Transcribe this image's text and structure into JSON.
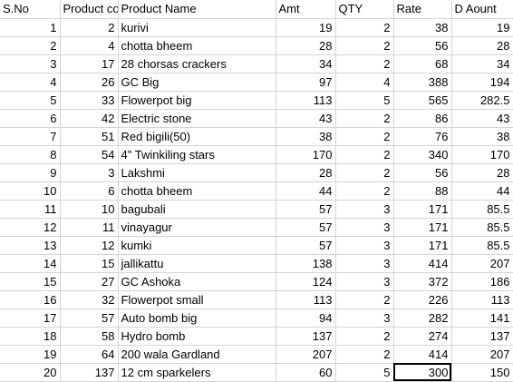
{
  "headers": [
    "S.No",
    "Product co",
    "Product Name",
    "Amt",
    "QTY",
    "Rate",
    "D Aount"
  ],
  "rows": [
    [
      "1",
      "2",
      "kurivi",
      "19",
      "2",
      "38",
      "19"
    ],
    [
      "2",
      "4",
      "chotta bheem",
      "28",
      "2",
      "56",
      "28"
    ],
    [
      "3",
      "17",
      "28 chorsas  crackers",
      "34",
      "2",
      "68",
      "34"
    ],
    [
      "4",
      "26",
      "GC Big",
      "97",
      "4",
      "388",
      "194"
    ],
    [
      "5",
      "33",
      "Flowerpot big",
      "113",
      "5",
      "565",
      "282.5"
    ],
    [
      "6",
      "42",
      "Electric stone",
      "43",
      "2",
      "86",
      "43"
    ],
    [
      "7",
      "51",
      "Red bigili(50)",
      "38",
      "2",
      "76",
      "38"
    ],
    [
      "8",
      "54",
      "4\" Twinkiling stars",
      "170",
      "2",
      "340",
      "170"
    ],
    [
      "9",
      "3",
      "Lakshmi",
      "28",
      "2",
      "56",
      "28"
    ],
    [
      "10",
      "6",
      "chotta bheem",
      "44",
      "2",
      "88",
      "44"
    ],
    [
      "11",
      "10",
      "bagubali",
      "57",
      "3",
      "171",
      "85.5"
    ],
    [
      "12",
      "11",
      "vinayagur",
      "57",
      "3",
      "171",
      "85.5"
    ],
    [
      "13",
      "12",
      "kumki",
      "57",
      "3",
      "171",
      "85.5"
    ],
    [
      "14",
      "15",
      "jallikattu",
      "138",
      "3",
      "414",
      "207"
    ],
    [
      "15",
      "27",
      "GC Ashoka",
      "124",
      "3",
      "372",
      "186"
    ],
    [
      "16",
      "32",
      "Flowerpot small",
      "113",
      "2",
      "226",
      "113"
    ],
    [
      "17",
      "57",
      "Auto bomb big",
      "94",
      "3",
      "282",
      "141"
    ],
    [
      "18",
      "58",
      "Hydro bomb",
      "137",
      "2",
      "274",
      "137"
    ],
    [
      "19",
      "64",
      "200 wala Gardland",
      "207",
      "2",
      "414",
      "207"
    ],
    [
      "20",
      "137",
      "12 cm sparkelers",
      "60",
      "5",
      "300",
      "150"
    ]
  ],
  "selected_cell": {
    "row": 19,
    "col": 5
  }
}
